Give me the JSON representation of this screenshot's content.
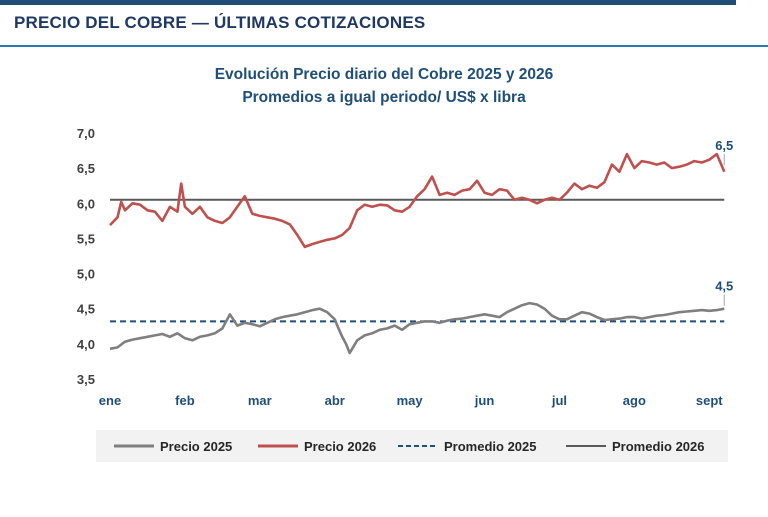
{
  "page_heading": "PRECIO DEL COBRE — ÚLTIMAS COTIZACIONES",
  "chart_data": {
    "type": "line",
    "title": "Evolución Precio diario del Cobre 2025 y 2026",
    "subtitle": "Promedios a igual periodo/ US$ x libra",
    "xlabel": "",
    "ylabel": "",
    "ylim": [
      3.5,
      7.0
    ],
    "yticks": [
      "7,0",
      "6,5",
      "6,0",
      "5,5",
      "5,0",
      "4,5",
      "4,0",
      "3,5"
    ],
    "ytick_values": [
      7.0,
      6.5,
      6.0,
      5.5,
      5.0,
      4.5,
      4.0,
      3.5
    ],
    "xlim": [
      0,
      8.25
    ],
    "categories": [
      "ene",
      "feb",
      "mar",
      "abr",
      "may",
      "jun",
      "jul",
      "ago",
      "sept"
    ],
    "grid": false,
    "legend_position": "bottom",
    "series": [
      {
        "name": "Precio 2025",
        "color": "#7f7f7f",
        "style": "solid",
        "x": [
          0.0,
          0.1,
          0.2,
          0.3,
          0.4,
          0.5,
          0.6,
          0.7,
          0.8,
          0.9,
          1.0,
          1.1,
          1.2,
          1.3,
          1.4,
          1.5,
          1.6,
          1.7,
          1.8,
          1.9,
          2.0,
          2.1,
          2.2,
          2.3,
          2.4,
          2.5,
          2.6,
          2.7,
          2.8,
          2.9,
          3.0,
          3.05,
          3.1,
          3.15,
          3.2,
          3.3,
          3.4,
          3.5,
          3.6,
          3.7,
          3.8,
          3.9,
          4.0,
          4.1,
          4.2,
          4.3,
          4.4,
          4.5,
          4.6,
          4.7,
          4.8,
          4.9,
          5.0,
          5.1,
          5.2,
          5.3,
          5.4,
          5.5,
          5.6,
          5.7,
          5.8,
          5.9,
          6.0,
          6.1,
          6.2,
          6.3,
          6.4,
          6.5,
          6.6,
          6.7,
          6.8,
          6.9,
          7.0,
          7.1,
          7.2,
          7.3,
          7.4,
          7.5,
          7.6,
          7.7,
          7.8,
          7.9,
          8.0,
          8.1,
          8.2
        ],
        "values": [
          3.93,
          3.95,
          4.03,
          4.06,
          4.08,
          4.1,
          4.12,
          4.14,
          4.1,
          4.15,
          4.08,
          4.05,
          4.1,
          4.12,
          4.15,
          4.22,
          4.42,
          4.26,
          4.3,
          4.28,
          4.25,
          4.3,
          4.35,
          4.38,
          4.4,
          4.42,
          4.45,
          4.48,
          4.5,
          4.45,
          4.35,
          4.22,
          4.1,
          4.0,
          3.87,
          4.05,
          4.12,
          4.15,
          4.2,
          4.22,
          4.26,
          4.2,
          4.28,
          4.3,
          4.32,
          4.32,
          4.3,
          4.33,
          4.35,
          4.36,
          4.38,
          4.4,
          4.42,
          4.4,
          4.38,
          4.45,
          4.5,
          4.55,
          4.58,
          4.56,
          4.5,
          4.4,
          4.35,
          4.35,
          4.4,
          4.45,
          4.43,
          4.38,
          4.34,
          4.35,
          4.36,
          4.38,
          4.38,
          4.36,
          4.38,
          4.4,
          4.41,
          4.43,
          4.45,
          4.46,
          4.47,
          4.48,
          4.47,
          4.48,
          4.5
        ]
      },
      {
        "name": "Precio 2026",
        "color": "#c0504d",
        "style": "solid",
        "x": [
          0.0,
          0.1,
          0.15,
          0.2,
          0.3,
          0.4,
          0.5,
          0.6,
          0.7,
          0.8,
          0.9,
          0.95,
          1.0,
          1.1,
          1.2,
          1.3,
          1.4,
          1.5,
          1.6,
          1.7,
          1.8,
          1.9,
          2.0,
          2.1,
          2.2,
          2.3,
          2.4,
          2.5,
          2.6,
          2.7,
          2.8,
          2.9,
          3.0,
          3.1,
          3.2,
          3.3,
          3.4,
          3.5,
          3.6,
          3.7,
          3.8,
          3.9,
          4.0,
          4.1,
          4.2,
          4.3,
          4.4,
          4.5,
          4.6,
          4.7,
          4.8,
          4.9,
          5.0,
          5.1,
          5.2,
          5.3,
          5.4,
          5.5,
          5.6,
          5.7,
          5.8,
          5.9,
          6.0,
          6.1,
          6.2,
          6.3,
          6.4,
          6.5,
          6.6,
          6.7,
          6.8,
          6.9,
          7.0,
          7.1,
          7.2,
          7.3,
          7.4,
          7.5,
          7.6,
          7.7,
          7.8,
          7.9,
          8.0,
          8.1,
          8.2
        ],
        "values": [
          5.69,
          5.8,
          6.02,
          5.9,
          6.0,
          5.98,
          5.9,
          5.88,
          5.75,
          5.95,
          5.88,
          6.28,
          5.95,
          5.85,
          5.95,
          5.8,
          5.75,
          5.72,
          5.8,
          5.95,
          6.1,
          5.85,
          5.82,
          5.8,
          5.78,
          5.75,
          5.7,
          5.55,
          5.38,
          5.42,
          5.45,
          5.48,
          5.5,
          5.55,
          5.65,
          5.9,
          5.98,
          5.95,
          5.98,
          5.97,
          5.9,
          5.88,
          5.95,
          6.1,
          6.2,
          6.38,
          6.12,
          6.15,
          6.12,
          6.18,
          6.2,
          6.32,
          6.15,
          6.12,
          6.2,
          6.18,
          6.05,
          6.08,
          6.05,
          6.0,
          6.05,
          6.08,
          6.05,
          6.15,
          6.28,
          6.2,
          6.25,
          6.22,
          6.3,
          6.55,
          6.45,
          6.7,
          6.5,
          6.6,
          6.58,
          6.55,
          6.58,
          6.5,
          6.52,
          6.55,
          6.6,
          6.58,
          6.62,
          6.7,
          6.45
        ]
      },
      {
        "name": "Promedio 2025",
        "color": "#1f4e79",
        "style": "dashed",
        "x": [
          0,
          8.2
        ],
        "values": [
          4.32,
          4.32
        ]
      },
      {
        "name": "Promedio 2026",
        "color": "#595959",
        "style": "solid",
        "x": [
          0,
          8.2
        ],
        "values": [
          6.05,
          6.05
        ]
      }
    ],
    "annotations": [
      {
        "text": "6,5",
        "x": 8.2,
        "y": 6.5,
        "color": "#1f4e79"
      },
      {
        "text": "4,5",
        "x": 8.2,
        "y": 4.5,
        "color": "#1f4e79"
      }
    ]
  }
}
